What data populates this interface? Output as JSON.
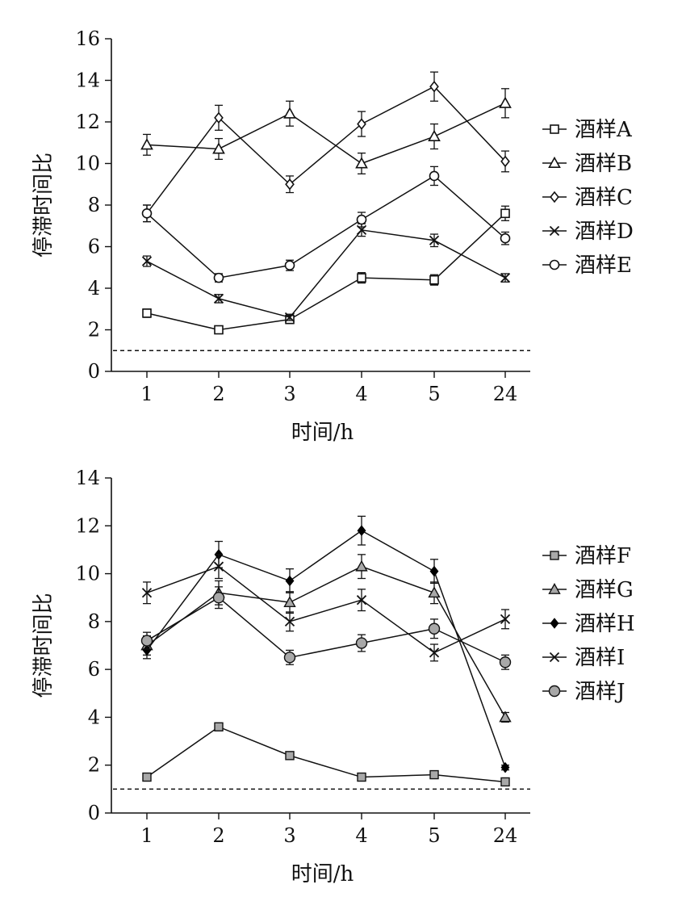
{
  "chart_data": [
    {
      "type": "line",
      "title": "",
      "xlabel": "时间/h",
      "ylabel": "停滞时间比",
      "categories": [
        "1",
        "2",
        "3",
        "4",
        "5",
        "24"
      ],
      "ylim": [
        0,
        16
      ],
      "yticks": [
        "0",
        "2",
        "4",
        "6",
        "8",
        "10",
        "12",
        "14",
        "16"
      ],
      "reference_line": 1,
      "legend_position": "right",
      "series": [
        {
          "name": "酒样A",
          "marker": "square-open",
          "values": [
            2.8,
            2.0,
            2.5,
            4.5,
            4.4,
            7.6
          ],
          "errors": [
            0.2,
            0.15,
            0.2,
            0.25,
            0.25,
            0.35
          ]
        },
        {
          "name": "酒样B",
          "marker": "triangle-open",
          "values": [
            10.9,
            10.7,
            12.4,
            10.0,
            11.3,
            12.9
          ],
          "errors": [
            0.5,
            0.5,
            0.6,
            0.5,
            0.6,
            0.7
          ]
        },
        {
          "name": "酒样C",
          "marker": "diamond-open",
          "values": [
            7.6,
            12.2,
            9.0,
            11.9,
            13.7,
            10.1
          ],
          "errors": [
            0.4,
            0.6,
            0.4,
            0.6,
            0.7,
            0.5
          ]
        },
        {
          "name": "酒样D",
          "marker": "x",
          "values": [
            5.3,
            3.5,
            2.6,
            6.8,
            6.3,
            4.5
          ],
          "errors": [
            0.25,
            0.2,
            0.15,
            0.3,
            0.3,
            0.2
          ]
        },
        {
          "name": "酒样E",
          "marker": "circle-open",
          "values": [
            7.6,
            4.5,
            5.1,
            7.3,
            9.4,
            6.4
          ],
          "errors": [
            0.4,
            0.2,
            0.25,
            0.35,
            0.45,
            0.3
          ]
        }
      ]
    },
    {
      "type": "line",
      "title": "",
      "xlabel": "时间/h",
      "ylabel": "停滞时间比",
      "categories": [
        "1",
        "2",
        "3",
        "4",
        "5",
        "24"
      ],
      "ylim": [
        0,
        14
      ],
      "yticks": [
        "0",
        "2",
        "4",
        "6",
        "8",
        "10",
        "12",
        "14"
      ],
      "reference_line": 1,
      "legend_position": "right",
      "series": [
        {
          "name": "酒样F",
          "marker": "square-gray",
          "values": [
            1.5,
            3.6,
            2.4,
            1.5,
            1.6,
            1.3
          ],
          "errors": [
            0.1,
            0.15,
            0.1,
            0.1,
            0.1,
            0.1
          ]
        },
        {
          "name": "酒样G",
          "marker": "triangle-gray",
          "values": [
            7.0,
            9.2,
            8.8,
            10.3,
            9.2,
            4.0
          ],
          "errors": [
            0.4,
            0.5,
            0.45,
            0.5,
            0.45,
            0.2
          ]
        },
        {
          "name": "酒样H",
          "marker": "diamond-black",
          "values": [
            6.8,
            10.8,
            9.7,
            11.8,
            10.1,
            1.9
          ],
          "errors": [
            0.35,
            0.55,
            0.5,
            0.6,
            0.5,
            0.1
          ]
        },
        {
          "name": "酒样I",
          "marker": "x",
          "values": [
            9.2,
            10.3,
            8.0,
            8.9,
            6.7,
            8.1
          ],
          "errors": [
            0.45,
            0.5,
            0.4,
            0.45,
            0.35,
            0.4
          ]
        },
        {
          "name": "酒样J",
          "marker": "circle-gray",
          "values": [
            7.2,
            9.0,
            6.5,
            7.1,
            7.7,
            6.3
          ],
          "errors": [
            0.35,
            0.45,
            0.3,
            0.35,
            0.4,
            0.3
          ]
        }
      ]
    }
  ]
}
